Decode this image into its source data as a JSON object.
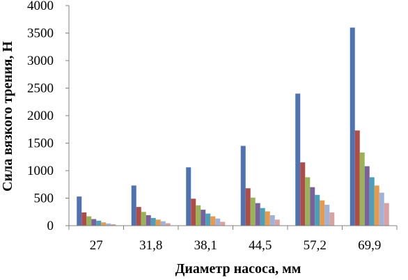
{
  "chart_data": {
    "type": "bar",
    "xlabel": "Диаметр насоса, мм",
    "ylabel": "Сила вязкого трения, Н",
    "ylim": [
      0,
      4000
    ],
    "yticks": [
      0,
      500,
      1000,
      1500,
      2000,
      2500,
      3000,
      3500,
      4000
    ],
    "grid": false,
    "legend": "none",
    "categories": [
      "27",
      "31,8",
      "38,1",
      "44,5",
      "57,2",
      "69,9"
    ],
    "series": [
      {
        "color": "#4f73b0",
        "values": [
          530,
          730,
          1060,
          1450,
          2400,
          3600
        ]
      },
      {
        "color": "#b04c48",
        "values": [
          240,
          340,
          490,
          680,
          1150,
          1730
        ]
      },
      {
        "color": "#98b358",
        "values": [
          170,
          250,
          370,
          510,
          880,
          1330
        ]
      },
      {
        "color": "#7a619b",
        "values": [
          120,
          190,
          290,
          410,
          700,
          1080
        ]
      },
      {
        "color": "#4aa0b8",
        "values": [
          90,
          140,
          220,
          320,
          560,
          880
        ]
      },
      {
        "color": "#e89a4c",
        "values": [
          60,
          110,
          170,
          260,
          460,
          730
        ]
      },
      {
        "color": "#9fb2d8",
        "values": [
          40,
          80,
          130,
          190,
          380,
          600
        ]
      },
      {
        "color": "#d9a1a0",
        "values": [
          25,
          45,
          70,
          110,
          240,
          410
        ]
      }
    ]
  }
}
